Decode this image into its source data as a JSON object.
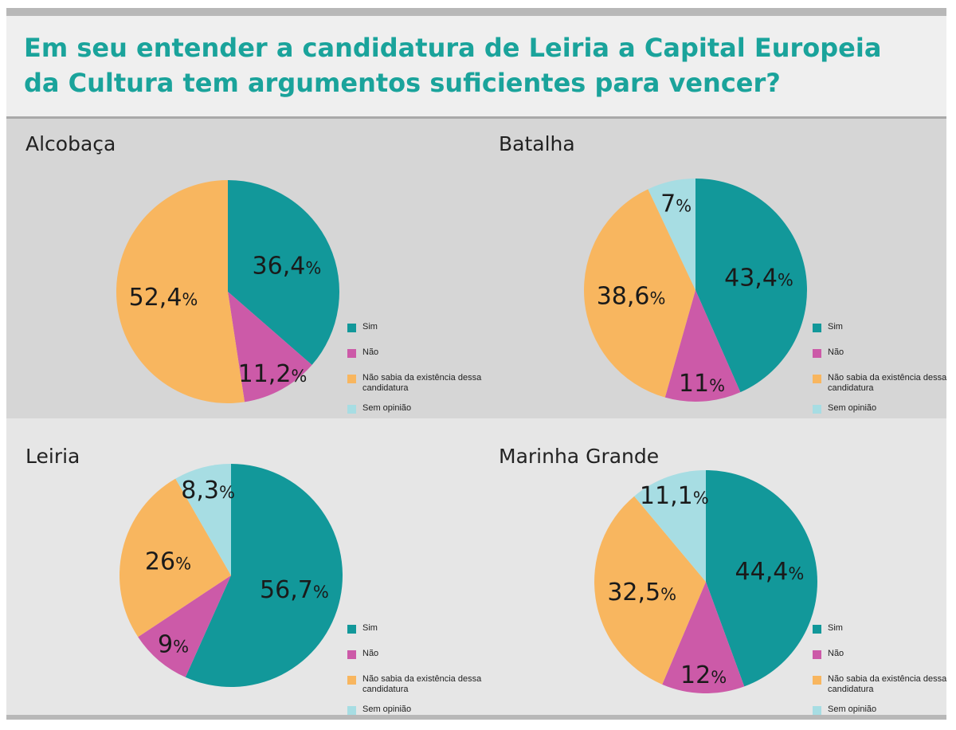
{
  "title": {
    "line1": "Em seu entender a candidatura de Leiria a Capital Europeia",
    "line2": "da Cultura tem argumentos suficientes para vencer?"
  },
  "colors": {
    "sim": "#12989a",
    "nao": "#cc5aa8",
    "nao_sabia": "#f8b65f",
    "sem_opiniao": "#a7dde3"
  },
  "legend": {
    "sim": "Sim",
    "nao": "Não",
    "nao_sabia": "Não sabia da existência dessa candidatura",
    "sem_opiniao": "Sem opinião"
  },
  "chart_data": [
    {
      "type": "pie",
      "title": "Alcobaça",
      "slices": [
        {
          "category": "sim",
          "value": 36.4,
          "label": "36,4"
        },
        {
          "category": "nao",
          "value": 11.2,
          "label": "11,2"
        },
        {
          "category": "nao_sabia",
          "value": 52.4,
          "label": "52,4"
        }
      ]
    },
    {
      "type": "pie",
      "title": "Batalha",
      "slices": [
        {
          "category": "sim",
          "value": 43.4,
          "label": "43,4"
        },
        {
          "category": "nao",
          "value": 11,
          "label": "11"
        },
        {
          "category": "nao_sabia",
          "value": 38.6,
          "label": "38,6"
        },
        {
          "category": "sem_opiniao",
          "value": 7,
          "label": "7"
        }
      ]
    },
    {
      "type": "pie",
      "title": "Leiria",
      "slices": [
        {
          "category": "sim",
          "value": 56.7,
          "label": "56,7"
        },
        {
          "category": "nao",
          "value": 9,
          "label": "9"
        },
        {
          "category": "nao_sabia",
          "value": 26,
          "label": "26"
        },
        {
          "category": "sem_opiniao",
          "value": 8.3,
          "label": "8,3"
        }
      ]
    },
    {
      "type": "pie",
      "title": "Marinha Grande",
      "slices": [
        {
          "category": "sim",
          "value": 44.4,
          "label": "44,4"
        },
        {
          "category": "nao",
          "value": 12,
          "label": "12"
        },
        {
          "category": "nao_sabia",
          "value": 32.5,
          "label": "32,5"
        },
        {
          "category": "sem_opiniao",
          "value": 11.1,
          "label": "11,1"
        }
      ]
    }
  ]
}
